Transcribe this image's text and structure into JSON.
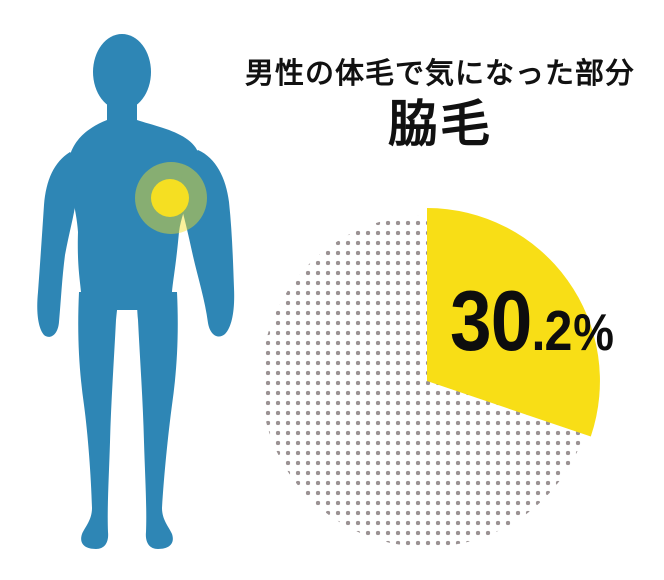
{
  "background": "#FFFFFF",
  "header": {
    "title": "男性の体毛で気になった部分",
    "subtitle": "脇毛"
  },
  "body_figure": {
    "description": "male-body-front-silhouette",
    "color": "#2E86B5",
    "highlight": {
      "color": "#F5DF22",
      "outer_opacity": 0.45,
      "location": "left-underarm-side"
    }
  },
  "chart_data": {
    "type": "pie",
    "title": "男性の体毛で気になった部分",
    "subtitle": "脇毛",
    "slices": [
      {
        "label": "脇毛",
        "value": 30.2,
        "color": "#F8DE16",
        "style": "solid"
      },
      {
        "label": "",
        "value": 69.8,
        "color": "#9B9293",
        "style": "polka-dots-on-white"
      }
    ],
    "start_angle_deg": 0,
    "direction": "clockwise",
    "legend": "none",
    "data_label": {
      "big": "30",
      "small": ".2",
      "unit": "%",
      "full": "30.2%",
      "color": "#0D0D0D"
    }
  }
}
